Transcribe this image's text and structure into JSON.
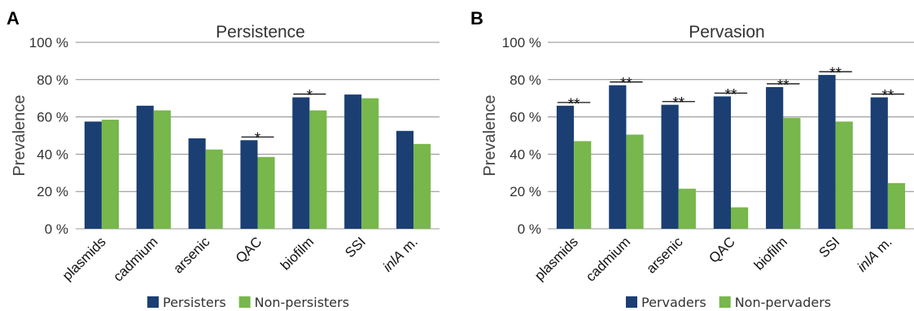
{
  "colors": {
    "series1": "#1b3f73",
    "series2": "#77b74b",
    "grid": "#8c8c8c"
  },
  "chart_data": [
    {
      "type": "bar",
      "panel": "A",
      "title": "Persistence",
      "ylabel": "Prevalence",
      "ylim": [
        0,
        100
      ],
      "yticks": [
        "0 %",
        "20 %",
        "40 %",
        "60 %",
        "80 %",
        "100 %"
      ],
      "categories": [
        "plasmids",
        "cadmium",
        "arsenic",
        "QAC",
        "biofilm",
        "SSI",
        "inlA m."
      ],
      "series": [
        {
          "name": "Persisters",
          "values": [
            57.5,
            66,
            48.5,
            47.5,
            70.5,
            72,
            52.5
          ]
        },
        {
          "name": "Non-persisters",
          "values": [
            58.5,
            63.5,
            42.5,
            38.5,
            63.5,
            70,
            45.5
          ]
        }
      ],
      "significance": [
        "",
        "",
        "",
        "*",
        "*",
        "",
        ""
      ],
      "grid": true,
      "legend_position": "bottom"
    },
    {
      "type": "bar",
      "panel": "B",
      "title": "Pervasion",
      "ylabel": "Prevalence",
      "ylim": [
        0,
        100
      ],
      "yticks": [
        "0 %",
        "20 %",
        "40 %",
        "60 %",
        "80 %",
        "100 %"
      ],
      "categories": [
        "plasmids",
        "cadmium",
        "arsenic",
        "QAC",
        "biofilm",
        "SSI",
        "inlA m."
      ],
      "series": [
        {
          "name": "Pervaders",
          "values": [
            66,
            77,
            66.5,
            71,
            76,
            82.5,
            70.5
          ]
        },
        {
          "name": "Non-pervaders",
          "values": [
            47,
            50.5,
            21.5,
            11.5,
            59.5,
            57.5,
            24.5
          ]
        }
      ],
      "significance": [
        "**",
        "**",
        "**",
        "**",
        "**",
        "**",
        "**"
      ],
      "grid": true,
      "legend_position": "bottom"
    }
  ]
}
